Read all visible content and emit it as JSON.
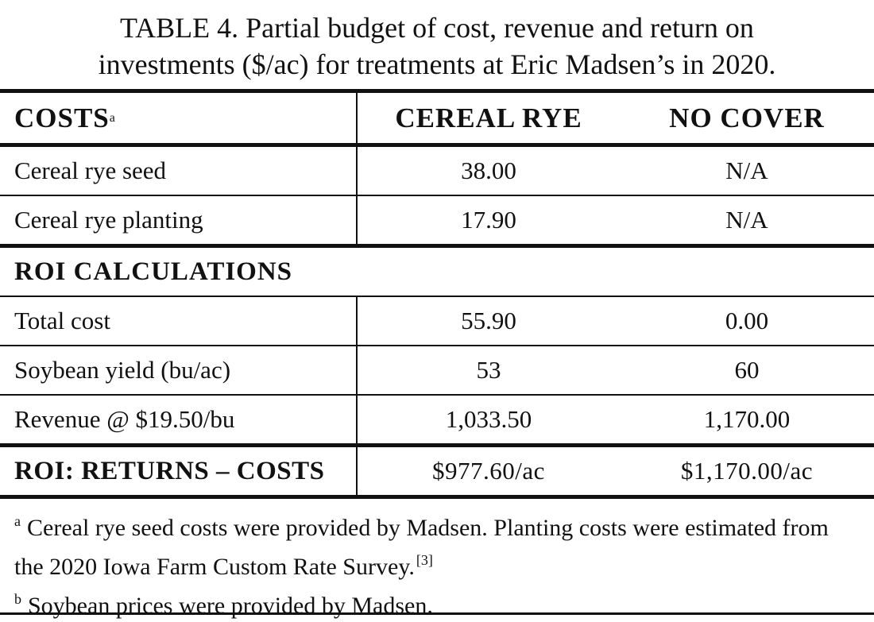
{
  "title_lines": [
    "TABLE 4. Partial budget of cost, revenue and return on",
    "investments ($/ac) for treatments at Eric Madsen’s in 2020."
  ],
  "table": {
    "header": [
      "COSTS",
      "CEREAL RYE",
      "NO COVER"
    ],
    "header_note": "a",
    "cost_rows": [
      [
        "Cereal rye seed",
        "38.00",
        "N/A"
      ],
      [
        "Cereal rye planting",
        "17.90",
        "N/A"
      ]
    ],
    "section_title": "ROI CALCULATIONS",
    "roi_rows": [
      [
        "Total cost",
        "55.90",
        "0.00"
      ],
      [
        "Soybean yield (bu/ac)",
        "53",
        "60"
      ],
      [
        "Revenue @ $19.50/bu",
        "1,033.50",
        "1,170.00"
      ]
    ],
    "total_row": [
      "ROI: RETURNS – COSTS",
      "$977.60/ac",
      "$1,170.00/ac"
    ]
  },
  "footnotes": [
    {
      "mark": "a",
      "text": "Cereal rye seed costs were provided by Madsen. Planting costs were estimated from the 2020 Iowa Farm Custom Rate Survey.",
      "ref": "[3]"
    },
    {
      "mark": "b",
      "text": "Soybean prices were provided by Madsen."
    }
  ]
}
